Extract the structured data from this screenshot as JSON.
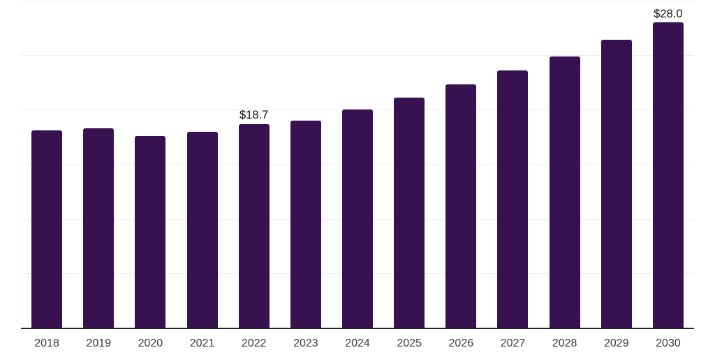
{
  "chart_data": {
    "type": "bar",
    "title": "",
    "xlabel": "",
    "ylabel": "",
    "categories": [
      "2018",
      "2019",
      "2020",
      "2021",
      "2022",
      "2023",
      "2024",
      "2025",
      "2026",
      "2027",
      "2028",
      "2029",
      "2030"
    ],
    "values": [
      18.1,
      18.3,
      17.6,
      18.0,
      18.7,
      19.0,
      20.0,
      21.1,
      22.3,
      23.6,
      24.9,
      26.4,
      28.0
    ],
    "bar_value_labels": [
      "",
      "",
      "",
      "",
      "$18.7",
      "",
      "",
      "",
      "",
      "",
      "",
      "",
      "$28.0"
    ],
    "ylim": [
      0,
      30
    ],
    "y_gridline_step": 5,
    "y_tick_labels_shown": false,
    "grid": "horizontal",
    "legend_position": "none"
  },
  "colors": {
    "background": "#ffffff",
    "bar": "#371150",
    "gridline": "#ececec",
    "axis_line": "#242424",
    "tick_label": "#3a3a3a",
    "value_label": "#0f0f0f"
  }
}
